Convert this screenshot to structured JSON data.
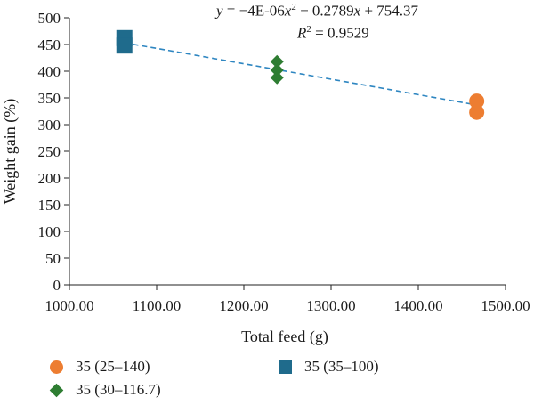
{
  "chart_data": {
    "type": "scatter",
    "xlabel": "Total feed (g)",
    "ylabel": "Weight gain (%)",
    "xlim": [
      1000,
      1500
    ],
    "ylim": [
      0,
      500
    ],
    "x_ticks": [
      "1000.00",
      "1100.00",
      "1200.00",
      "1300.00",
      "1400.00",
      "1500.00"
    ],
    "y_ticks": [
      "0",
      "50",
      "100",
      "150",
      "200",
      "250",
      "300",
      "350",
      "400",
      "450",
      "500"
    ],
    "series": [
      {
        "name": "35 (25–140)",
        "color": "#ed7d31",
        "marker": "circle",
        "points": [
          [
            1467,
            344
          ],
          [
            1467,
            323
          ]
        ]
      },
      {
        "name": "35 (35–100)",
        "color": "#1f6b8c",
        "marker": "square",
        "points": [
          [
            1063,
            462
          ],
          [
            1063,
            448
          ]
        ]
      },
      {
        "name": "35 (30–116.7)",
        "color": "#2e7d32",
        "marker": "diamond",
        "points": [
          [
            1238,
            418
          ],
          [
            1238,
            402
          ],
          [
            1238,
            388
          ]
        ]
      }
    ],
    "trendline": {
      "type": "polynomial",
      "color": "#2e86c1",
      "style": "dashed",
      "coefficients": {
        "a": -4e-06,
        "b": -0.2789,
        "c": 754.37
      },
      "x_range": [
        1063,
        1467
      ],
      "equation": {
        "y": "y",
        "eq_prefix": " = −4E-06",
        "x1": "x",
        "sup2": "2",
        "mid": " − 0.2789",
        "x2": "x",
        "suffix": " + 754.37",
        "r_label": "R",
        "r_eq": " = 0.9529"
      }
    },
    "legend_position": "bottom",
    "grid": false
  }
}
